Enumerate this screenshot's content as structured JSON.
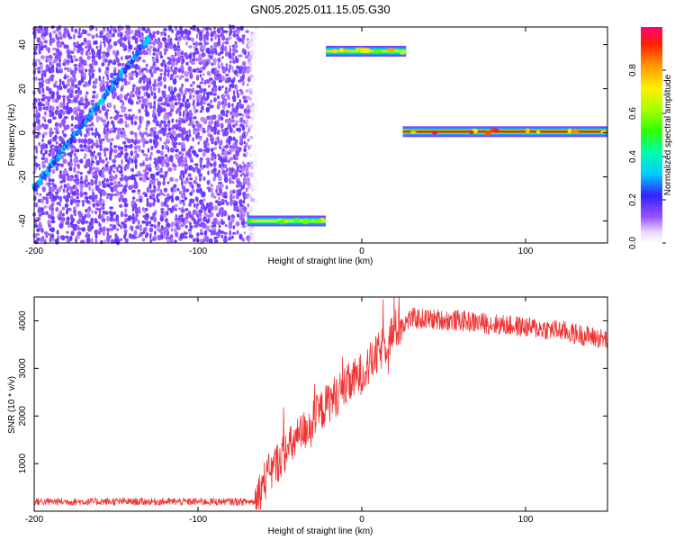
{
  "title": "GN05.2025.011.15.05.G30",
  "chart_data": [
    {
      "type": "heatmap",
      "xlabel": "Height of straight line (km)",
      "ylabel": "Frequency (Hz)",
      "xlim": [
        -200,
        150
      ],
      "ylim": [
        -50,
        48
      ],
      "xticks": [
        -200,
        -100,
        0,
        100
      ],
      "yticks": [
        -40,
        -20,
        0,
        20,
        40
      ],
      "colorbar": {
        "label": "Normalized spectral amplitude",
        "range": [
          0,
          1
        ],
        "ticks": [
          "0.0",
          "0.2",
          "0.4",
          "0.6",
          "0.8"
        ]
      },
      "features": [
        {
          "name": "noise region",
          "x_range": [
            -200,
            -65
          ],
          "amplitude": 0.15
        },
        {
          "name": "diagonal line",
          "x_range": [
            -200,
            -130
          ],
          "y_range": [
            -25,
            43
          ],
          "amplitude": 0.25
        },
        {
          "name": "segment",
          "x_range": [
            -70,
            -22
          ],
          "y": -40,
          "amplitude": 0.7
        },
        {
          "name": "segment",
          "x_range": [
            -22,
            27
          ],
          "y": 37,
          "amplitude": 0.75
        },
        {
          "name": "segment",
          "x_range": [
            25,
            150
          ],
          "y": 0.5,
          "amplitude": 0.95
        }
      ]
    },
    {
      "type": "line",
      "xlabel": "Height of straight line (km)",
      "ylabel": "SNR (10 * v/v)",
      "xlim": [
        -200,
        150
      ],
      "ylim": [
        0,
        4500
      ],
      "xticks": [
        -200,
        -100,
        0,
        100
      ],
      "yticks": [
        1000,
        2000,
        3000,
        4000
      ],
      "color": "#ee3333",
      "series_profile": [
        {
          "x": -200,
          "y": 200
        },
        {
          "x": -65,
          "y": 200
        },
        {
          "x": -60,
          "y": 600
        },
        {
          "x": -50,
          "y": 1100
        },
        {
          "x": -40,
          "y": 1500
        },
        {
          "x": -30,
          "y": 1900
        },
        {
          "x": -20,
          "y": 2300
        },
        {
          "x": -10,
          "y": 2600
        },
        {
          "x": 0,
          "y": 2900
        },
        {
          "x": 10,
          "y": 3300
        },
        {
          "x": 20,
          "y": 3800
        },
        {
          "x": 30,
          "y": 4050
        },
        {
          "x": 60,
          "y": 4000
        },
        {
          "x": 90,
          "y": 3900
        },
        {
          "x": 120,
          "y": 3800
        },
        {
          "x": 150,
          "y": 3600
        }
      ]
    }
  ]
}
